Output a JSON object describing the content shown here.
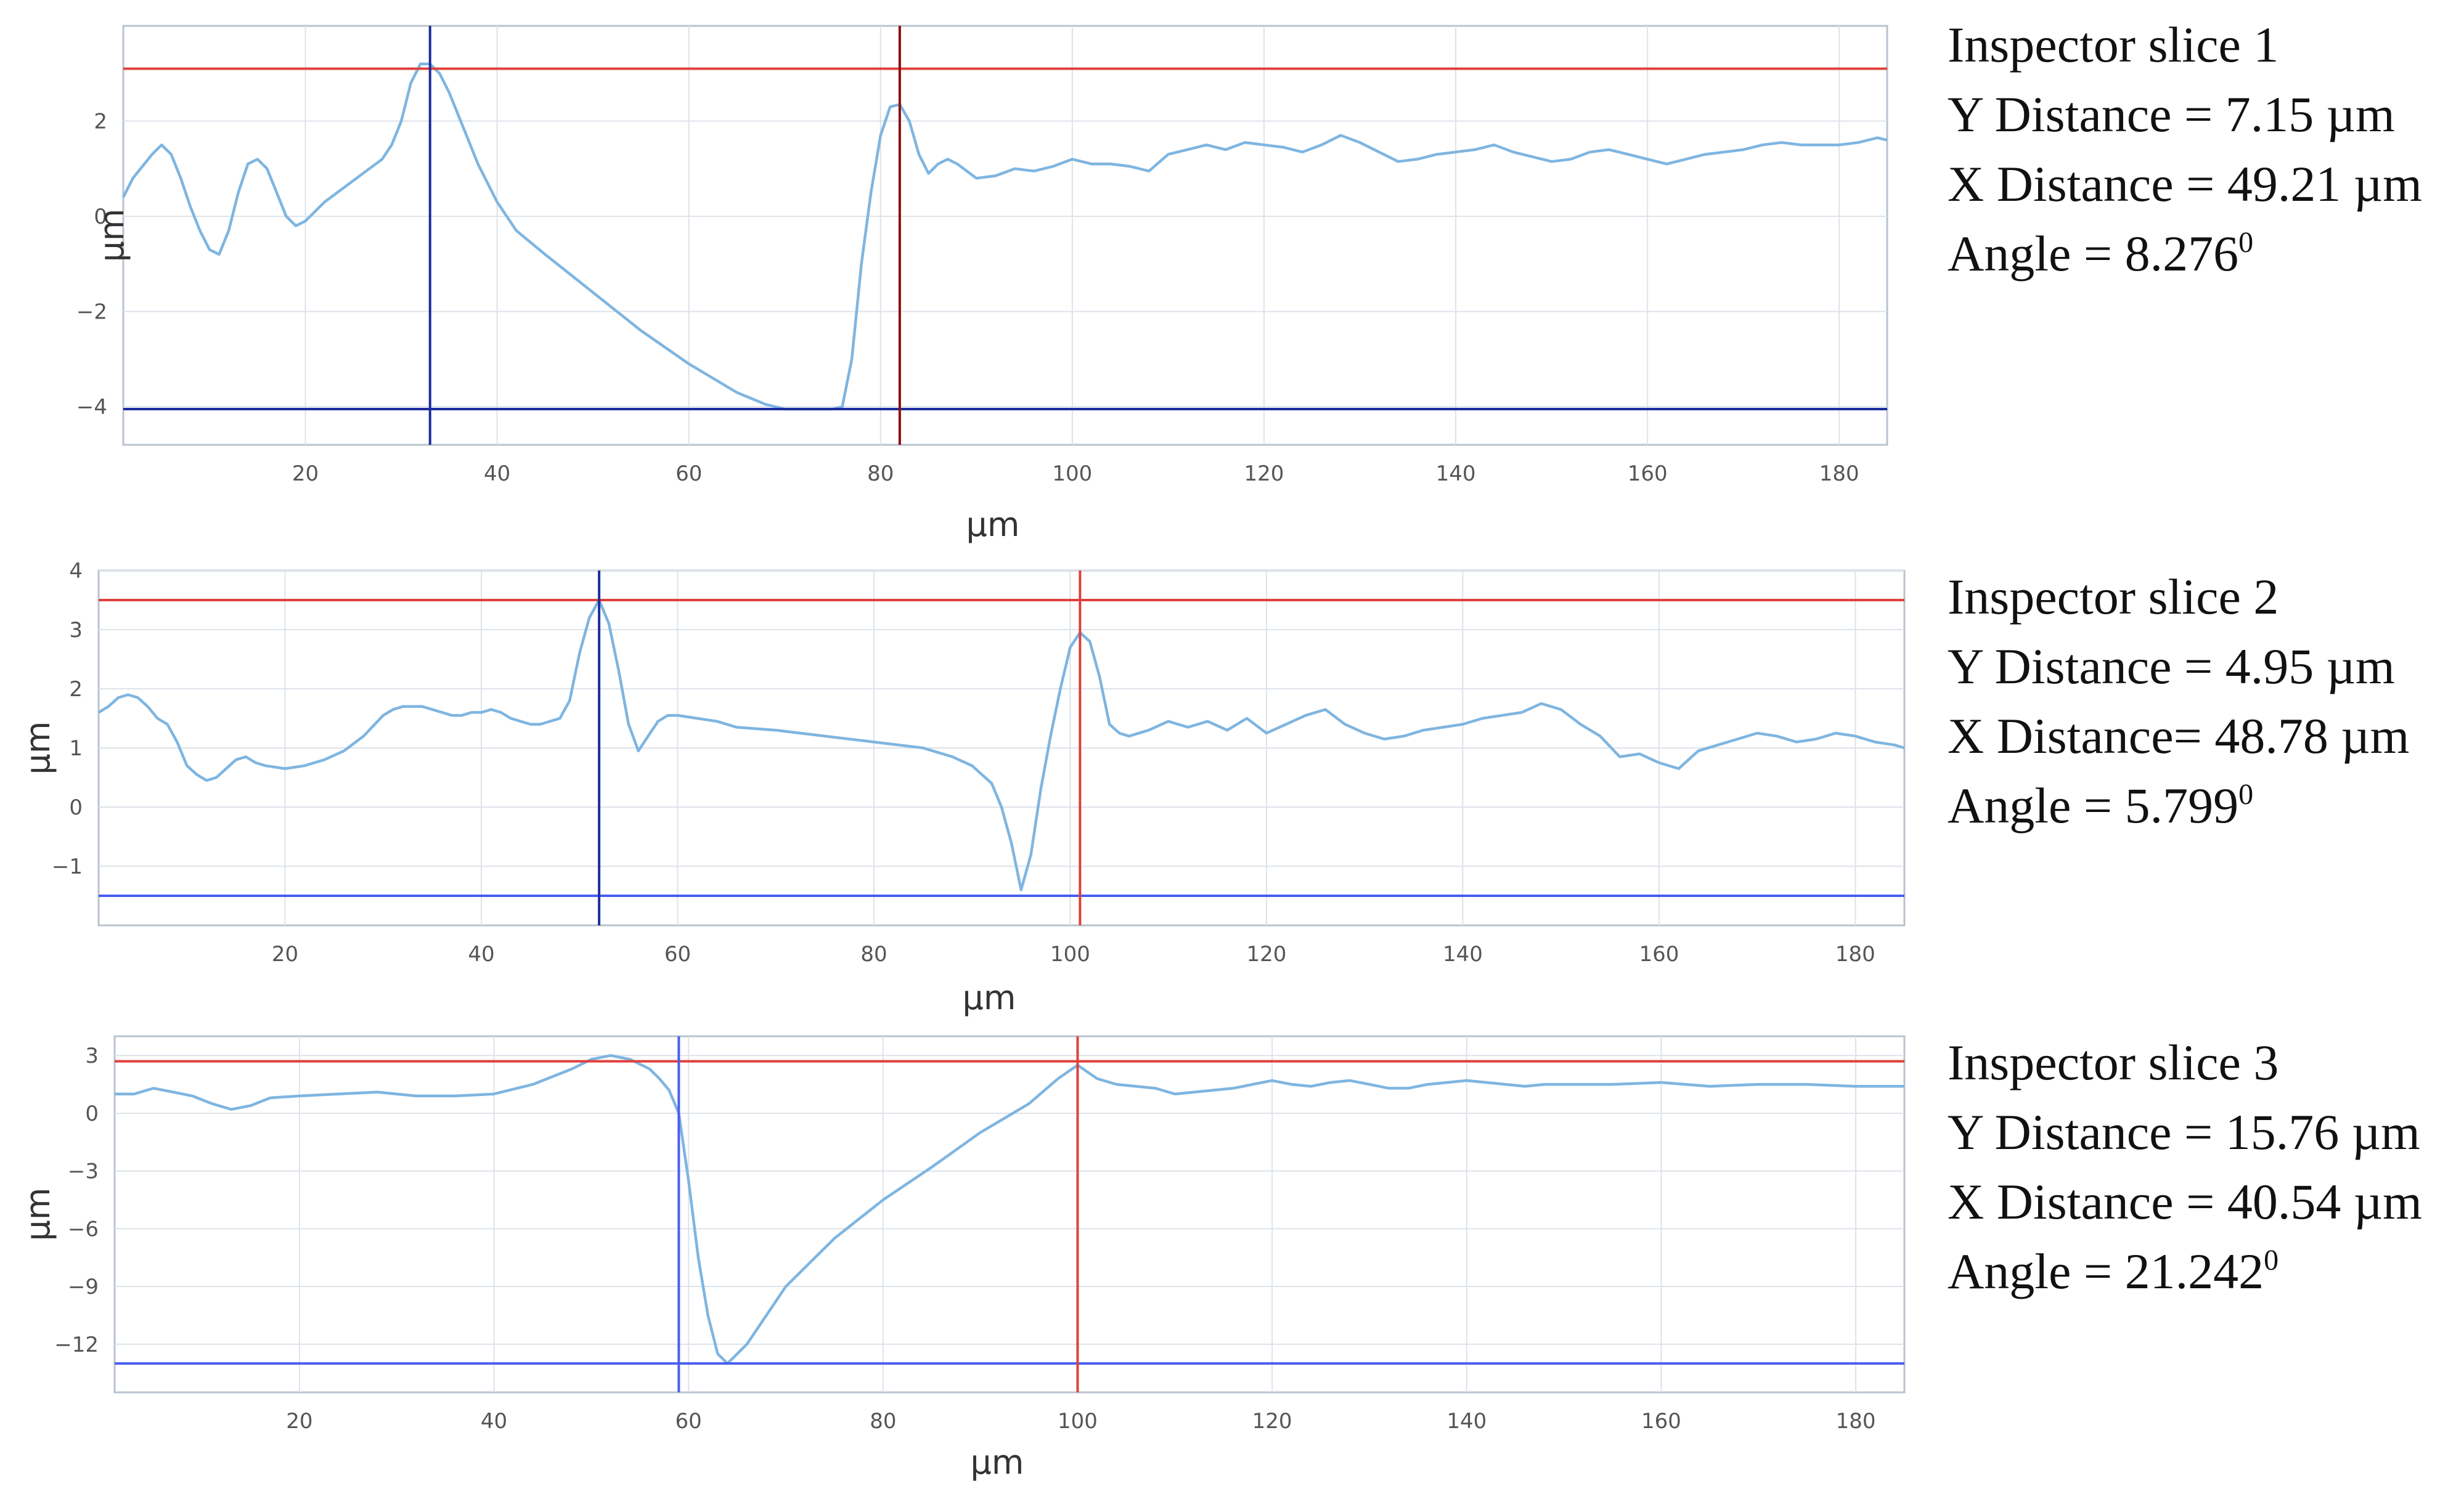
{
  "colors": {
    "profile": "#7fb5e0",
    "red_cursor": "#e0403c",
    "dark_red_cursor": "#8b1010",
    "blue_cursor": "#1c2d9c",
    "light_blue_cursor": "#4a5ef0",
    "grid": "#dde3ea",
    "frame": "#b9c3cf"
  },
  "panels": [
    {
      "title": "Inspector slice 1",
      "y_distance": "Y Distance = 7.15 µm",
      "x_distance": "X Distance = 49.21 µm",
      "angle_text": "Angle = 8.276",
      "angle_sup": "0"
    },
    {
      "title": "Inspector slice 2",
      "y_distance": "Y Distance = 4.95 µm",
      "x_distance": "X Distance= 48.78 µm",
      "angle_text": "Angle = 5.799",
      "angle_sup": "0"
    },
    {
      "title": "Inspector slice 3",
      "y_distance": "Y Distance = 15.76 µm",
      "x_distance": "X Distance = 40.54 µm",
      "angle_text": "Angle = 21.242",
      "angle_sup": "0"
    }
  ],
  "chart_data": [
    {
      "type": "line",
      "xlabel": "µm",
      "ylabel": "µm",
      "xlim": [
        1,
        185
      ],
      "ylim": [
        -4.8,
        4
      ],
      "x_ticks": [
        20,
        40,
        60,
        80,
        100,
        120,
        140,
        160,
        180
      ],
      "y_ticks": [
        -4,
        -2,
        0,
        2
      ],
      "grid": true,
      "legend": "none",
      "cursors": {
        "hlines": [
          {
            "y": 3.1,
            "color": "red"
          },
          {
            "y": -4.05,
            "color": "dark_blue"
          }
        ],
        "vlines": [
          {
            "x": 33,
            "color": "dark_blue"
          },
          {
            "x": 82,
            "color": "dark_red"
          }
        ]
      },
      "series": [
        {
          "x": [
            1,
            2,
            4,
            5,
            6,
            7,
            8,
            9,
            10,
            11,
            12,
            13,
            14,
            15,
            16,
            17,
            18,
            19,
            20,
            22,
            24,
            26,
            28,
            29,
            30,
            31,
            32,
            33,
            34,
            35,
            36,
            37,
            38,
            40,
            42,
            45,
            50,
            55,
            60,
            65,
            68,
            70,
            72,
            74,
            75,
            76,
            77,
            78,
            79,
            80,
            81,
            82,
            83,
            84,
            85,
            86,
            87,
            88,
            90,
            92,
            94,
            96,
            98,
            100,
            102,
            104,
            106,
            108,
            110,
            112,
            114,
            116,
            118,
            120,
            122,
            124,
            126,
            128,
            130,
            132,
            134,
            136,
            138,
            140,
            142,
            144,
            146,
            148,
            150,
            152,
            154,
            156,
            158,
            160,
            162,
            164,
            166,
            168,
            170,
            172,
            174,
            176,
            178,
            180,
            182,
            184,
            185
          ],
          "y": [
            0.4,
            0.8,
            1.3,
            1.5,
            1.3,
            0.8,
            0.2,
            -0.3,
            -0.7,
            -0.8,
            -0.3,
            0.5,
            1.1,
            1.2,
            1.0,
            0.5,
            0.0,
            -0.2,
            -0.1,
            0.3,
            0.6,
            0.9,
            1.2,
            1.5,
            2.0,
            2.8,
            3.2,
            3.2,
            3.0,
            2.6,
            2.1,
            1.6,
            1.1,
            0.3,
            -0.3,
            -0.8,
            -1.6,
            -2.4,
            -3.1,
            -3.7,
            -3.95,
            -4.05,
            -4.05,
            -4.05,
            -4.05,
            -4.0,
            -3.0,
            -1.0,
            0.5,
            1.7,
            2.3,
            2.35,
            2.0,
            1.3,
            0.9,
            1.1,
            1.2,
            1.1,
            0.8,
            0.85,
            1.0,
            0.95,
            1.05,
            1.2,
            1.1,
            1.1,
            1.05,
            0.95,
            1.3,
            1.4,
            1.5,
            1.4,
            1.55,
            1.5,
            1.45,
            1.35,
            1.5,
            1.7,
            1.55,
            1.35,
            1.15,
            1.2,
            1.3,
            1.35,
            1.4,
            1.5,
            1.35,
            1.25,
            1.15,
            1.2,
            1.35,
            1.4,
            1.3,
            1.2,
            1.1,
            1.2,
            1.3,
            1.35,
            1.4,
            1.5,
            1.55,
            1.5,
            1.5,
            1.5,
            1.55,
            1.65,
            1.6
          ]
        }
      ]
    },
    {
      "type": "line",
      "xlabel": "µm",
      "ylabel": "µm",
      "xlim": [
        1,
        185
      ],
      "ylim": [
        -2,
        4
      ],
      "x_ticks": [
        20,
        40,
        60,
        80,
        100,
        120,
        140,
        160,
        180
      ],
      "y_ticks": [
        -1,
        0,
        1,
        2,
        3,
        4
      ],
      "grid": true,
      "legend": "none",
      "cursors": {
        "hlines": [
          {
            "y": 3.5,
            "color": "red"
          },
          {
            "y": -1.5,
            "color": "light_blue"
          }
        ],
        "vlines": [
          {
            "x": 52,
            "color": "dark_blue"
          },
          {
            "x": 101,
            "color": "red"
          }
        ]
      },
      "series": [
        {
          "x": [
            1,
            2,
            3,
            4,
            5,
            6,
            7,
            8,
            9,
            10,
            11,
            12,
            13,
            14,
            15,
            16,
            17,
            18,
            20,
            22,
            24,
            26,
            28,
            30,
            31,
            32,
            33,
            34,
            35,
            36,
            37,
            38,
            39,
            40,
            41,
            42,
            43,
            44,
            45,
            46,
            47,
            48,
            49,
            50,
            51,
            52,
            53,
            54,
            55,
            56,
            57,
            58,
            59,
            60,
            62,
            64,
            66,
            70,
            75,
            80,
            85,
            88,
            90,
            92,
            93,
            94,
            95,
            96,
            97,
            98,
            99,
            100,
            101,
            102,
            103,
            104,
            105,
            106,
            108,
            110,
            112,
            114,
            116,
            118,
            120,
            122,
            124,
            126,
            128,
            130,
            132,
            134,
            136,
            138,
            140,
            142,
            144,
            146,
            148,
            150,
            152,
            154,
            156,
            158,
            160,
            162,
            164,
            166,
            168,
            170,
            172,
            174,
            176,
            178,
            180,
            182,
            184,
            185
          ],
          "y": [
            1.6,
            1.7,
            1.85,
            1.9,
            1.85,
            1.7,
            1.5,
            1.4,
            1.1,
            0.7,
            0.55,
            0.45,
            0.5,
            0.65,
            0.8,
            0.85,
            0.75,
            0.7,
            0.65,
            0.7,
            0.8,
            0.95,
            1.2,
            1.55,
            1.65,
            1.7,
            1.7,
            1.7,
            1.65,
            1.6,
            1.55,
            1.55,
            1.6,
            1.6,
            1.65,
            1.6,
            1.5,
            1.45,
            1.4,
            1.4,
            1.45,
            1.5,
            1.8,
            2.6,
            3.2,
            3.5,
            3.1,
            2.3,
            1.4,
            0.95,
            1.2,
            1.45,
            1.55,
            1.55,
            1.5,
            1.45,
            1.35,
            1.3,
            1.2,
            1.1,
            1.0,
            0.85,
            0.7,
            0.4,
            0.0,
            -0.6,
            -1.4,
            -0.8,
            0.3,
            1.2,
            2.0,
            2.7,
            2.95,
            2.8,
            2.2,
            1.4,
            1.25,
            1.2,
            1.3,
            1.45,
            1.35,
            1.45,
            1.3,
            1.5,
            1.25,
            1.4,
            1.55,
            1.65,
            1.4,
            1.25,
            1.15,
            1.2,
            1.3,
            1.35,
            1.4,
            1.5,
            1.55,
            1.6,
            1.75,
            1.65,
            1.4,
            1.2,
            0.85,
            0.9,
            0.75,
            0.65,
            0.95,
            1.05,
            1.15,
            1.25,
            1.2,
            1.1,
            1.15,
            1.25,
            1.2,
            1.1,
            1.05,
            1.0
          ]
        }
      ]
    },
    {
      "type": "line",
      "xlabel": "µm",
      "ylabel": "µm",
      "xlim": [
        1,
        185
      ],
      "ylim": [
        -14.5,
        4
      ],
      "x_ticks": [
        20,
        40,
        60,
        80,
        100,
        120,
        140,
        160,
        180
      ],
      "y_ticks": [
        -12,
        -9,
        -6,
        -3,
        0,
        3
      ],
      "grid": true,
      "legend": "none",
      "cursors": {
        "hlines": [
          {
            "y": 2.7,
            "color": "red"
          },
          {
            "y": -13.0,
            "color": "light_blue"
          }
        ],
        "vlines": [
          {
            "x": 59,
            "color": "light_blue"
          },
          {
            "x": 100,
            "color": "red"
          }
        ]
      },
      "series": [
        {
          "x": [
            1,
            3,
            5,
            7,
            9,
            11,
            13,
            15,
            17,
            20,
            24,
            28,
            32,
            36,
            40,
            44,
            48,
            50,
            52,
            54,
            56,
            57,
            58,
            59,
            60,
            61,
            62,
            63,
            64,
            66,
            70,
            75,
            80,
            85,
            90,
            95,
            98,
            100,
            102,
            104,
            106,
            108,
            110,
            112,
            114,
            116,
            118,
            120,
            122,
            124,
            126,
            128,
            130,
            132,
            134,
            136,
            138,
            140,
            142,
            144,
            146,
            148,
            150,
            155,
            160,
            165,
            170,
            175,
            180,
            185
          ],
          "y": [
            1.0,
            1.0,
            1.3,
            1.1,
            0.9,
            0.5,
            0.2,
            0.4,
            0.8,
            0.9,
            1.0,
            1.1,
            0.9,
            0.9,
            1.0,
            1.5,
            2.3,
            2.8,
            3.0,
            2.8,
            2.3,
            1.8,
            1.2,
            0.0,
            -3.5,
            -7.5,
            -10.5,
            -12.5,
            -13.0,
            -12.0,
            -9.0,
            -6.5,
            -4.5,
            -2.8,
            -1.0,
            0.5,
            1.8,
            2.5,
            1.8,
            1.5,
            1.4,
            1.3,
            1.0,
            1.1,
            1.2,
            1.3,
            1.5,
            1.7,
            1.5,
            1.4,
            1.6,
            1.7,
            1.5,
            1.3,
            1.3,
            1.5,
            1.6,
            1.7,
            1.6,
            1.5,
            1.4,
            1.5,
            1.5,
            1.5,
            1.6,
            1.4,
            1.5,
            1.5,
            1.4,
            1.4
          ]
        }
      ]
    }
  ]
}
